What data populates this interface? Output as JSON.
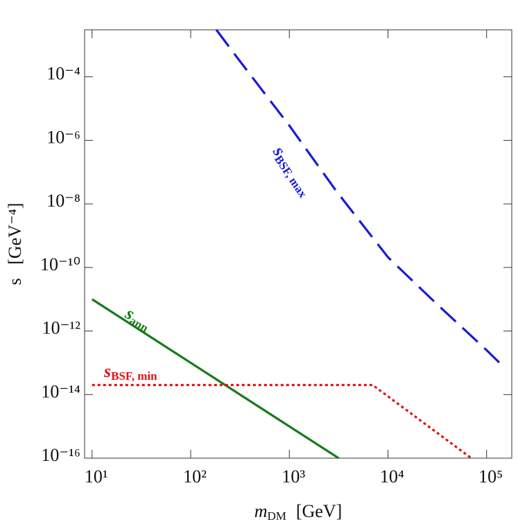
{
  "chart_data": {
    "type": "line",
    "x_label": {
      "main": "m",
      "sub": "DM",
      "rest": "[GeV]"
    },
    "y_label": "s   [GeV⁻⁴]",
    "log_x": true,
    "log_y": true,
    "xlim": [
      8.4,
      180000
    ],
    "ylim": [
      1e-16,
      0.003
    ],
    "xticks": [
      {
        "value": 10,
        "label": "10¹"
      },
      {
        "value": 100,
        "label": "10²"
      },
      {
        "value": 1000,
        "label": "10³"
      },
      {
        "value": 10000,
        "label": "10⁴"
      },
      {
        "value": 100000,
        "label": "10⁵"
      }
    ],
    "yticks": [
      {
        "value": 1e-16,
        "label": "10⁻¹⁶"
      },
      {
        "value": 1e-14,
        "label": "10⁻¹⁴"
      },
      {
        "value": 1e-12,
        "label": "10⁻¹²"
      },
      {
        "value": 1e-10,
        "label": "10⁻¹⁰"
      },
      {
        "value": 1e-08,
        "label": "10⁻⁸"
      },
      {
        "value": 1e-06,
        "label": "10⁻⁶"
      },
      {
        "value": 0.0001,
        "label": "10⁻⁴"
      }
    ],
    "series": [
      {
        "name": "s",
        "sub": "BSF, max",
        "color": "#1a1ad6",
        "style": "dashed",
        "x": [
          182,
          300,
          1000,
          3000,
          10000,
          30000,
          100000,
          140000
        ],
        "values": [
          0.003,
          0.00038,
          2.9e-06,
          2.5e-08,
          2.1e-10,
          8e-12,
          2.5e-13,
          9e-14
        ]
      },
      {
        "name": "s",
        "sub": "ann",
        "color": "#187a18",
        "style": "solid",
        "x": [
          10,
          3162
        ],
        "values": [
          1e-11,
          1e-16
        ]
      },
      {
        "name": "s",
        "sub": "BSF, min",
        "color": "#e01414",
        "style": "dotted",
        "x": [
          10,
          7000,
          70000
        ],
        "values": [
          2e-14,
          2e-14,
          1e-16
        ]
      }
    ]
  }
}
